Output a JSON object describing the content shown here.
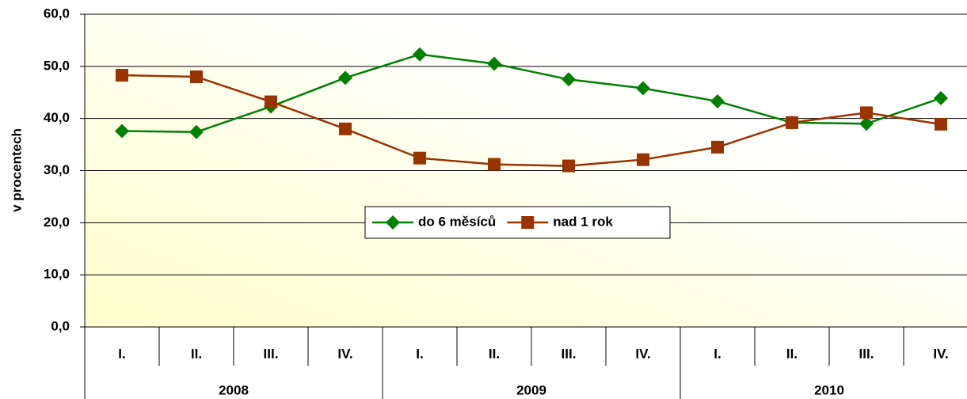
{
  "chart_data": {
    "type": "line",
    "y_label": "v procentech",
    "categories": [
      "I.",
      "II.",
      "III.",
      "IV.",
      "I.",
      "II.",
      "III.",
      "IV.",
      "I.",
      "II.",
      "III.",
      "IV."
    ],
    "years": [
      "2008",
      "2009",
      "2010"
    ],
    "series": [
      {
        "name": "do 6 měsíců",
        "color": "#008000",
        "marker": "diamond",
        "values": [
          37.6,
          37.4,
          42.3,
          47.8,
          52.3,
          50.5,
          47.5,
          45.8,
          43.3,
          39.2,
          39.0,
          43.9
        ]
      },
      {
        "name": "nad 1 rok",
        "color": "#993300",
        "marker": "square",
        "values": [
          48.3,
          48.0,
          43.2,
          38.0,
          32.4,
          31.2,
          30.9,
          32.1,
          34.5,
          39.2,
          41.1,
          38.9
        ]
      }
    ],
    "ylim": [
      0,
      60
    ],
    "yticks": [
      {
        "value": 0,
        "label": "0,0"
      },
      {
        "value": 10,
        "label": "10,0"
      },
      {
        "value": 20,
        "label": "20,0"
      },
      {
        "value": 30,
        "label": "30,0"
      },
      {
        "value": 40,
        "label": "40,0"
      },
      {
        "value": 50,
        "label": "50,0"
      },
      {
        "value": 60,
        "label": "60,0"
      }
    ],
    "grid": true
  }
}
